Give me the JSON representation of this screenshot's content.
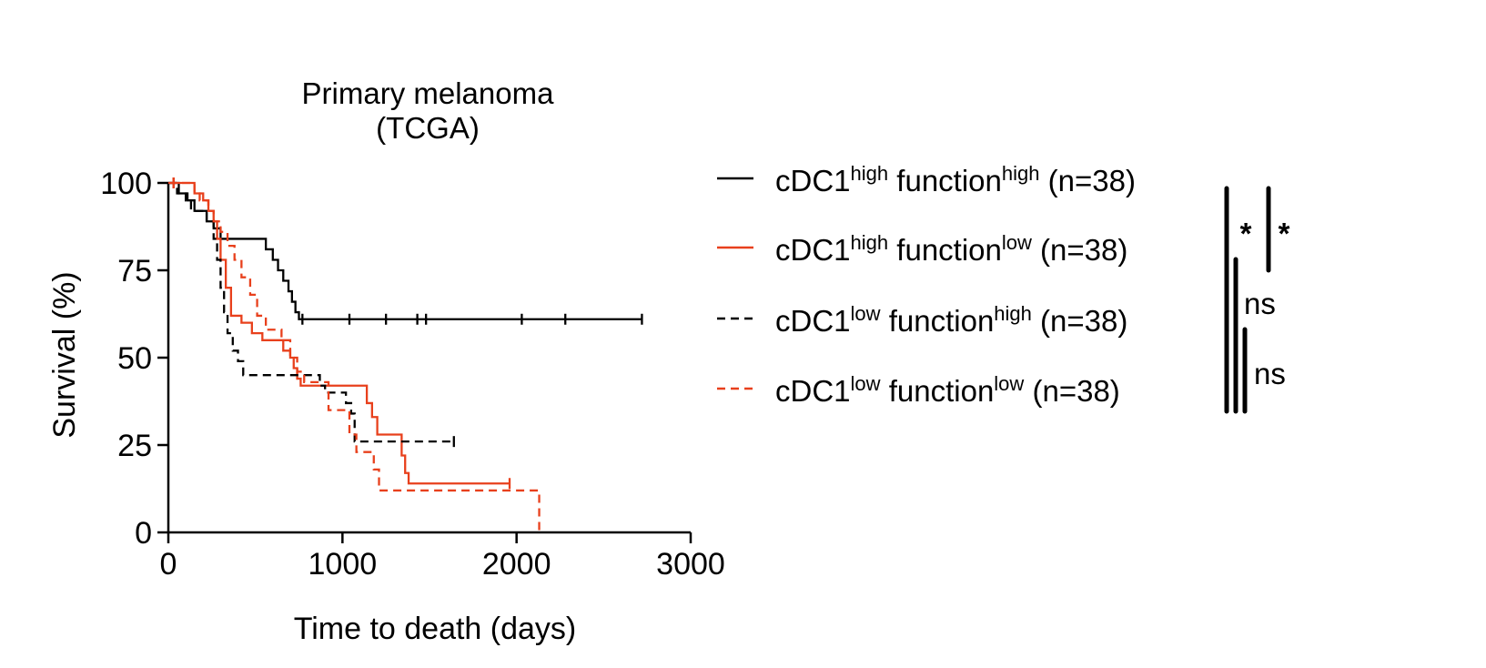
{
  "chart_data": {
    "type": "line",
    "subtype": "kaplan-meier",
    "title": "Primary melanoma",
    "subtitle": "(TCGA)",
    "xlabel": "Time to death (days)",
    "ylabel": "Survival (%)",
    "xlim": [
      0,
      3000
    ],
    "ylim": [
      0,
      100
    ],
    "xticks": [
      0,
      1000,
      2000,
      3000
    ],
    "yticks": [
      0,
      25,
      50,
      75,
      100
    ],
    "grid": false,
    "legend_position": "right",
    "colors": {
      "black": "#000000",
      "red": "#e8401c"
    },
    "series": [
      {
        "legend": {
          "base": "cDC1",
          "sup1": "high",
          "mid": " function",
          "sup2": "high",
          "suffix": " (n=38)"
        },
        "color": "#000000",
        "dash": false,
        "steps": [
          [
            0,
            100
          ],
          [
            60,
            97
          ],
          [
            110,
            95
          ],
          [
            150,
            92
          ],
          [
            220,
            89
          ],
          [
            260,
            87
          ],
          [
            300,
            84
          ],
          [
            400,
            84
          ],
          [
            460,
            84
          ],
          [
            520,
            84
          ],
          [
            560,
            81
          ],
          [
            600,
            78
          ],
          [
            630,
            75
          ],
          [
            660,
            72
          ],
          [
            690,
            69
          ],
          [
            710,
            66
          ],
          [
            730,
            63
          ],
          [
            750,
            61
          ],
          [
            2720,
            61
          ]
        ],
        "censor": [
          30,
          770,
          1040,
          1250,
          1430,
          1480,
          2030,
          2280,
          2720
        ]
      },
      {
        "legend": {
          "base": "cDC1",
          "sup1": "high",
          "mid": " function",
          "sup2": "low",
          "suffix": " (n=38)"
        },
        "color": "#e8401c",
        "dash": false,
        "steps": [
          [
            0,
            100
          ],
          [
            150,
            97
          ],
          [
            200,
            95
          ],
          [
            230,
            92
          ],
          [
            260,
            89
          ],
          [
            280,
            84
          ],
          [
            300,
            78
          ],
          [
            330,
            70
          ],
          [
            360,
            62
          ],
          [
            420,
            60
          ],
          [
            480,
            57
          ],
          [
            540,
            55
          ],
          [
            600,
            55
          ],
          [
            660,
            52
          ],
          [
            700,
            50
          ],
          [
            720,
            47
          ],
          [
            740,
            44
          ],
          [
            760,
            42
          ],
          [
            1100,
            42
          ],
          [
            1140,
            37
          ],
          [
            1170,
            33
          ],
          [
            1200,
            28
          ],
          [
            1320,
            28
          ],
          [
            1340,
            22
          ],
          [
            1360,
            17
          ],
          [
            1380,
            14
          ],
          [
            1960,
            14
          ]
        ],
        "censor": [
          30,
          1960
        ]
      },
      {
        "legend": {
          "base": "cDC1",
          "sup1": "low",
          "mid": " function",
          "sup2": "high",
          "suffix": " (n=38)"
        },
        "color": "#000000",
        "dash": true,
        "steps": [
          [
            0,
            100
          ],
          [
            50,
            97
          ],
          [
            100,
            95
          ],
          [
            130,
            92
          ],
          [
            180,
            92
          ],
          [
            220,
            89
          ],
          [
            260,
            84
          ],
          [
            280,
            78
          ],
          [
            300,
            70
          ],
          [
            320,
            63
          ],
          [
            340,
            57
          ],
          [
            370,
            52
          ],
          [
            400,
            49
          ],
          [
            430,
            45
          ],
          [
            470,
            45
          ],
          [
            830,
            45
          ],
          [
            870,
            42
          ],
          [
            900,
            40
          ],
          [
            980,
            40
          ],
          [
            1020,
            37
          ],
          [
            1050,
            34
          ],
          [
            1070,
            26
          ],
          [
            1640,
            26
          ]
        ],
        "censor": [
          1640
        ]
      },
      {
        "legend": {
          "base": "cDC1",
          "sup1": "low",
          "mid": " function",
          "sup2": "low",
          "suffix": " (n=38)"
        },
        "color": "#e8401c",
        "dash": true,
        "steps": [
          [
            0,
            100
          ],
          [
            150,
            97
          ],
          [
            180,
            95
          ],
          [
            230,
            92
          ],
          [
            260,
            89
          ],
          [
            300,
            86
          ],
          [
            340,
            82
          ],
          [
            380,
            78
          ],
          [
            420,
            73
          ],
          [
            470,
            68
          ],
          [
            510,
            62
          ],
          [
            560,
            58
          ],
          [
            600,
            58
          ],
          [
            650,
            55
          ],
          [
            700,
            50
          ],
          [
            740,
            46
          ],
          [
            780,
            43
          ],
          [
            900,
            43
          ],
          [
            920,
            35
          ],
          [
            1000,
            35
          ],
          [
            1040,
            28
          ],
          [
            1080,
            23
          ],
          [
            1150,
            23
          ],
          [
            1180,
            18
          ],
          [
            1210,
            12
          ],
          [
            2130,
            12
          ],
          [
            2130,
            0
          ]
        ],
        "censor": [
          30
        ]
      }
    ],
    "significance": [
      {
        "label": "*"
      },
      {
        "label": "*"
      },
      {
        "label": "ns"
      },
      {
        "label": "ns"
      }
    ]
  }
}
